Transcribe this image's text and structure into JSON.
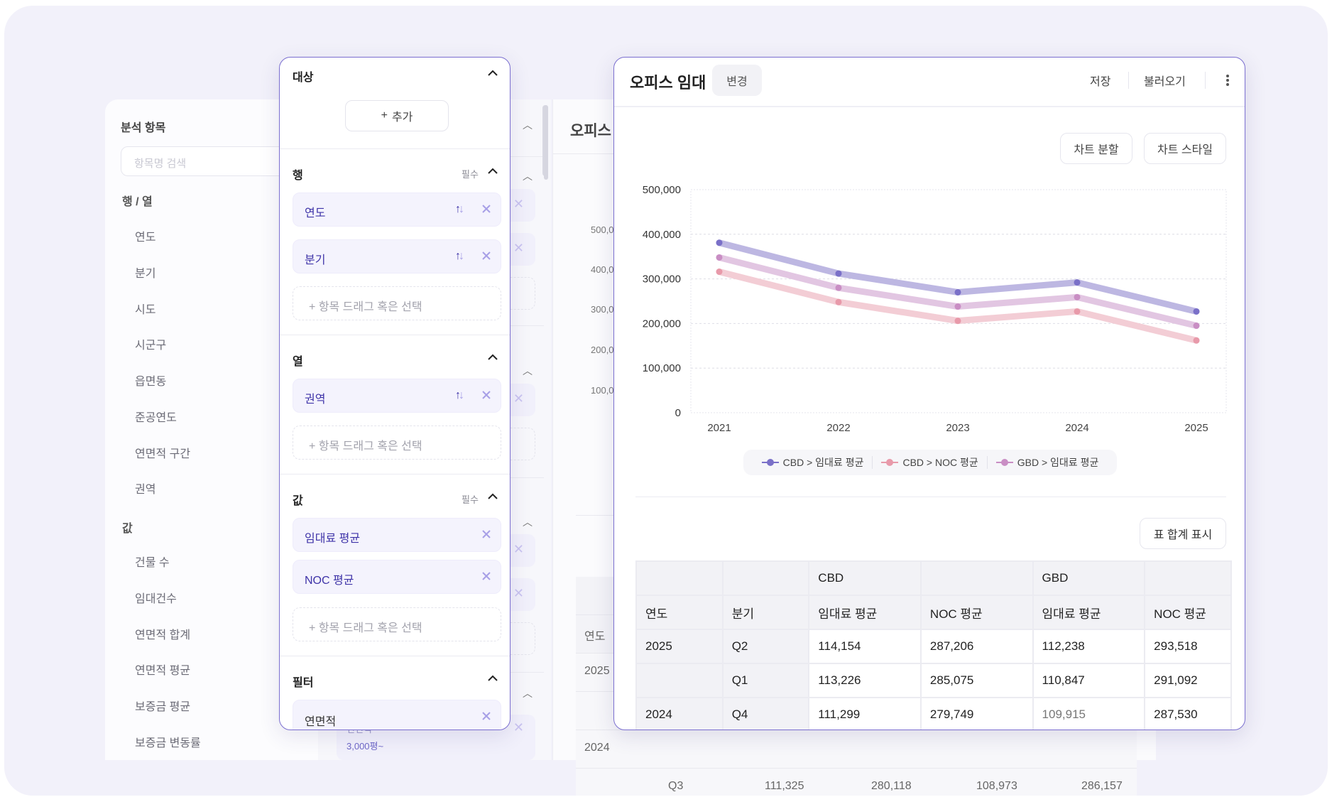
{
  "background": {
    "sidebar": {
      "title": "분석 항목",
      "search_placeholder": "항목명 검색",
      "groups": [
        {
          "label": "행 / 열",
          "items": [
            "연도",
            "분기",
            "시도",
            "시군구",
            "읍면동",
            "준공연도",
            "연면적 구간",
            "권역"
          ]
        },
        {
          "label": "값",
          "items": [
            "건물 수",
            "임대건수",
            "연면적 합계",
            "연면적 평균",
            "보증금 평균",
            "보증금 변동률"
          ]
        }
      ]
    },
    "config": {
      "filter_chip": {
        "label": "연면적",
        "value": "3,000평~"
      }
    },
    "chart_panel": {
      "title": "오피스 임대",
      "y_ticks": [
        "500,000",
        "400,000",
        "300,000",
        "200,000",
        "100,000",
        "0"
      ],
      "table": {
        "header_year": "연도",
        "rows": [
          {
            "year": "2025",
            "quarter": "",
            "values": []
          },
          {
            "year": "",
            "quarter": "",
            "values": []
          },
          {
            "year": "2024",
            "quarter": "",
            "values": []
          },
          {
            "year": "",
            "quarter": "Q3",
            "values": [
              "111,325",
              "280,118",
              "108,973",
              "286,157"
            ]
          }
        ]
      }
    }
  },
  "config": {
    "target": {
      "title": "대상",
      "add_label": "추가"
    },
    "rows": {
      "title": "행",
      "required": "필수",
      "chips": [
        {
          "label": "연도"
        },
        {
          "label": "분기"
        }
      ],
      "drop_placeholder": "항목 드래그 혹은 선택"
    },
    "columns": {
      "title": "열",
      "chips": [
        {
          "label": "권역"
        }
      ],
      "drop_placeholder": "항목 드래그 혹은 선택"
    },
    "values": {
      "title": "값",
      "required": "필수",
      "chips": [
        {
          "label": "임대료 평균"
        },
        {
          "label": "NOC 평균"
        }
      ],
      "drop_placeholder": "항목 드래그 혹은 선택"
    },
    "filter": {
      "title": "필터",
      "chips": [
        {
          "label": "연면적"
        }
      ]
    }
  },
  "chart_panel": {
    "title": "오피스 임대",
    "change_label": "변경",
    "save_label": "저장",
    "load_label": "불러오기",
    "split_label": "차트 분할",
    "style_label": "차트 스타일",
    "total_label": "표 합계 표시",
    "colors": {
      "accent": "#7b6fd0",
      "cbd_rent": "#7a70c8",
      "cbd_noc": "#e89aaa",
      "gbd_rent": "#c98ec4"
    }
  },
  "chart_data": {
    "type": "line",
    "title": "",
    "xlabel": "",
    "ylabel": "",
    "x": [
      "2021",
      "2022",
      "2023",
      "2024",
      "2025"
    ],
    "ylim": [
      0,
      500000
    ],
    "y_ticks": [
      "500,000",
      "400,000",
      "300,000",
      "200,000",
      "100,000",
      "0"
    ],
    "y_tick_values": [
      500000,
      400000,
      300000,
      200000,
      100000,
      0
    ],
    "grid": true,
    "legend_position": "bottom",
    "series": [
      {
        "name": "CBD > 임대료 평균",
        "color": "#7a70c8",
        "line_color": "#bdb7e2",
        "values": [
          381000,
          312000,
          270000,
          292000,
          227000
        ]
      },
      {
        "name": "CBD > NOC 평균",
        "color": "#e89aaa",
        "line_color": "#f3cdd5",
        "values": [
          316000,
          248000,
          206000,
          227000,
          162000
        ]
      },
      {
        "name": "GBD > 임대료 평균",
        "color": "#c98ec4",
        "line_color": "#e2c6e2",
        "values": [
          348000,
          280000,
          238000,
          259000,
          195000
        ]
      }
    ]
  },
  "table": {
    "group_header": [
      "",
      "",
      "CBD",
      "",
      "GBD",
      ""
    ],
    "column_header": [
      "연도",
      "분기",
      "임대료 평균",
      "NOC 평균",
      "임대료 평균",
      "NOC 평균"
    ],
    "rows": [
      {
        "year": "2025",
        "quarter": "Q2",
        "values": [
          "114,154",
          "287,206",
          "112,238",
          "293,518"
        ]
      },
      {
        "year": "",
        "quarter": "Q1",
        "values": [
          "113,226",
          "285,075",
          "110,847",
          "291,092"
        ]
      },
      {
        "year": "2024",
        "quarter": "Q4",
        "values": [
          "111,299",
          "279,749",
          "109,915",
          "287,530"
        ]
      }
    ]
  }
}
